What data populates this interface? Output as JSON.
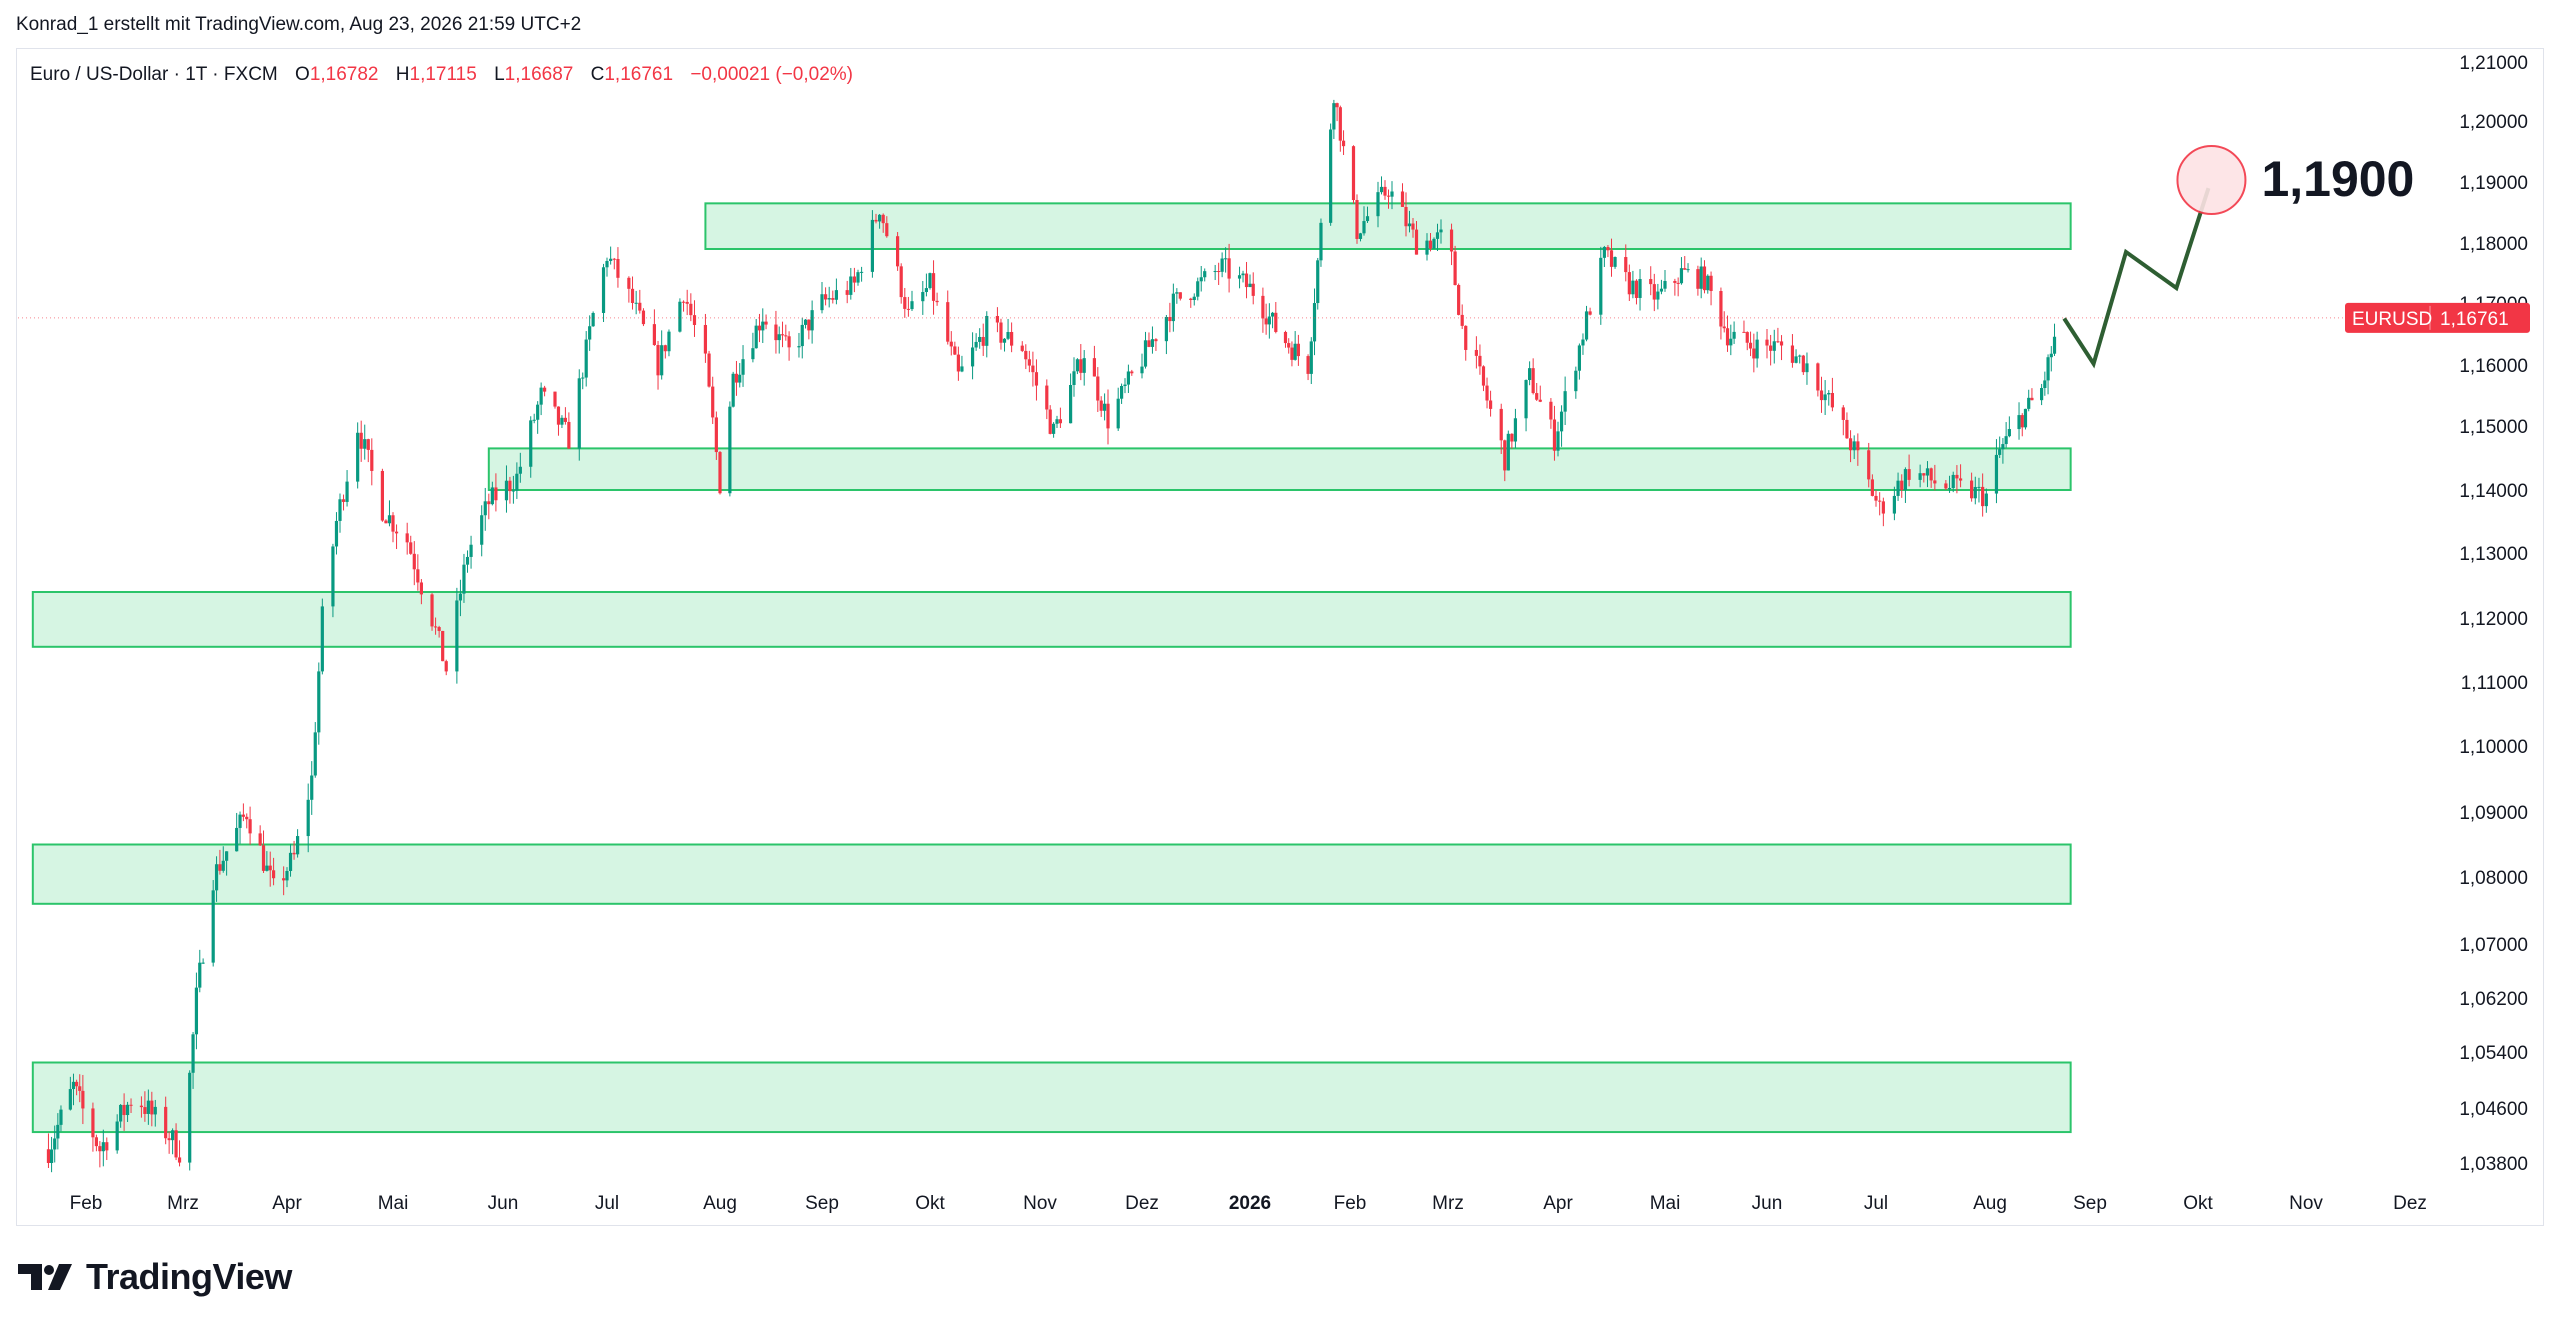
{
  "header": {
    "publisher_line": "Konrad_1 erstellt mit TradingView.com, Aug 23, 2026 21:59 UTC+2"
  },
  "legend": {
    "symbol_name": "Euro / US-Dollar · 1T · FXCM",
    "open_label": "O",
    "open": "1,16782",
    "high_label": "H",
    "high": "1,17115",
    "low_label": "L",
    "low": "1,16687",
    "close_label": "C",
    "close": "1,16761",
    "change": "−0,00021 (−0,02%)"
  },
  "price_tag": {
    "symbol": "EURUSD",
    "price": "1,16761",
    "color": "#f23645"
  },
  "brand": {
    "name": "TradingView",
    "icon": "tradingview-logo-icon"
  },
  "colors": {
    "up": "#089981",
    "down": "#f23645",
    "zone_fill": "#d6f5e3",
    "zone_border": "#2bc46a",
    "projection": "#2e5e32"
  },
  "chart_data": {
    "type": "candlestick",
    "instrument": "EURUSD",
    "timeframe": "1T",
    "ylim": [
      1.034,
      1.213
    ],
    "y_ticks": [
      "1,21000",
      "1,20000",
      "1,19000",
      "1,18000",
      "1,17000",
      "1,16000",
      "1,15000",
      "1,14000",
      "1,13000",
      "1,12000",
      "1,11000",
      "1,10000",
      "1,09000",
      "1,08000",
      "1,07000",
      "1,06200",
      "1,05400",
      "1,04600",
      "1,03800"
    ],
    "x_ticks": [
      {
        "label": "Feb",
        "bold": false
      },
      {
        "label": "Mrz",
        "bold": false
      },
      {
        "label": "Apr",
        "bold": false
      },
      {
        "label": "Mai",
        "bold": false
      },
      {
        "label": "Jun",
        "bold": false
      },
      {
        "label": "Jul",
        "bold": false
      },
      {
        "label": "Aug",
        "bold": false
      },
      {
        "label": "Sep",
        "bold": false
      },
      {
        "label": "Okt",
        "bold": false
      },
      {
        "label": "Nov",
        "bold": false
      },
      {
        "label": "Dez",
        "bold": false
      },
      {
        "label": "2026",
        "bold": true
      },
      {
        "label": "Feb",
        "bold": false
      },
      {
        "label": "Mrz",
        "bold": false
      },
      {
        "label": "Apr",
        "bold": false
      },
      {
        "label": "Mai",
        "bold": false
      },
      {
        "label": "Jun",
        "bold": false
      },
      {
        "label": "Jul",
        "bold": false
      },
      {
        "label": "Aug",
        "bold": false
      },
      {
        "label": "Sep",
        "bold": false
      },
      {
        "label": "Okt",
        "bold": false
      },
      {
        "label": "Nov",
        "bold": false
      },
      {
        "label": "Dez",
        "bold": false
      }
    ],
    "price_path": [
      [
        "2025-01-20",
        1.04
      ],
      [
        "2025-01-28",
        1.049
      ],
      [
        "2025-02-05",
        1.04
      ],
      [
        "2025-02-15",
        1.048
      ],
      [
        "2025-02-25",
        1.042
      ],
      [
        "2025-03-01",
        1.039
      ],
      [
        "2025-03-05",
        1.062
      ],
      [
        "2025-03-10",
        1.08
      ],
      [
        "2025-03-20",
        1.09
      ],
      [
        "2025-03-28",
        1.078
      ],
      [
        "2025-04-03",
        1.083
      ],
      [
        "2025-04-08",
        1.095
      ],
      [
        "2025-04-11",
        1.12
      ],
      [
        "2025-04-15",
        1.135
      ],
      [
        "2025-04-21",
        1.15
      ],
      [
        "2025-04-28",
        1.137
      ],
      [
        "2025-05-05",
        1.132
      ],
      [
        "2025-05-12",
        1.12
      ],
      [
        "2025-05-16",
        1.112
      ],
      [
        "2025-05-22",
        1.13
      ],
      [
        "2025-05-28",
        1.138
      ],
      [
        "2025-06-05",
        1.142
      ],
      [
        "2025-06-12",
        1.155
      ],
      [
        "2025-06-20",
        1.148
      ],
      [
        "2025-06-27",
        1.168
      ],
      [
        "2025-07-01",
        1.178
      ],
      [
        "2025-07-08",
        1.17
      ],
      [
        "2025-07-15",
        1.16
      ],
      [
        "2025-07-22",
        1.172
      ],
      [
        "2025-07-28",
        1.16
      ],
      [
        "2025-08-01",
        1.141
      ],
      [
        "2025-08-05",
        1.158
      ],
      [
        "2025-08-14",
        1.168
      ],
      [
        "2025-08-22",
        1.162
      ],
      [
        "2025-09-01",
        1.17
      ],
      [
        "2025-09-10",
        1.173
      ],
      [
        "2025-09-17",
        1.186
      ],
      [
        "2025-09-25",
        1.168
      ],
      [
        "2025-10-01",
        1.173
      ],
      [
        "2025-10-09",
        1.158
      ],
      [
        "2025-10-17",
        1.166
      ],
      [
        "2025-10-27",
        1.163
      ],
      [
        "2025-11-05",
        1.149
      ],
      [
        "2025-11-14",
        1.162
      ],
      [
        "2025-11-21",
        1.151
      ],
      [
        "2025-12-01",
        1.161
      ],
      [
        "2025-12-10",
        1.17
      ],
      [
        "2025-12-24",
        1.176
      ],
      [
        "2026-01-02",
        1.172
      ],
      [
        "2026-01-10",
        1.165
      ],
      [
        "2026-01-19",
        1.16
      ],
      [
        "2026-01-27",
        1.205
      ],
      [
        "2026-02-03",
        1.182
      ],
      [
        "2026-02-12",
        1.189
      ],
      [
        "2026-02-20",
        1.18
      ],
      [
        "2026-03-01",
        1.181
      ],
      [
        "2026-03-05",
        1.166
      ],
      [
        "2026-03-10",
        1.158
      ],
      [
        "2026-03-17",
        1.145
      ],
      [
        "2026-03-24",
        1.158
      ],
      [
        "2026-03-31",
        1.148
      ],
      [
        "2026-04-07",
        1.163
      ],
      [
        "2026-04-14",
        1.178
      ],
      [
        "2026-04-21",
        1.173
      ],
      [
        "2026-04-29",
        1.171
      ],
      [
        "2026-05-06",
        1.175
      ],
      [
        "2026-05-13",
        1.174
      ],
      [
        "2026-05-20",
        1.165
      ],
      [
        "2026-05-28",
        1.163
      ],
      [
        "2026-06-05",
        1.163
      ],
      [
        "2026-06-12",
        1.16
      ],
      [
        "2026-06-19",
        1.153
      ],
      [
        "2026-06-26",
        1.145
      ],
      [
        "2026-07-02",
        1.137
      ],
      [
        "2026-07-10",
        1.143
      ],
      [
        "2026-07-18",
        1.141
      ],
      [
        "2026-07-25",
        1.14
      ],
      [
        "2026-07-31",
        1.139
      ],
      [
        "2026-08-04",
        1.146
      ],
      [
        "2026-08-10",
        1.151
      ],
      [
        "2026-08-17",
        1.156
      ],
      [
        "2026-08-23",
        1.168
      ]
    ],
    "zones": [
      {
        "from": "2025-07-28",
        "to": "2026-08-26",
        "low": 1.179,
        "high": 1.1865
      },
      {
        "from": "2025-05-28",
        "to": "2026-08-26",
        "low": 1.14,
        "high": 1.1465
      },
      {
        "from": "2025-01-15",
        "to": "2026-08-26",
        "low": 1.1155,
        "high": 1.124
      },
      {
        "from": "2025-01-15",
        "to": "2026-08-26",
        "low": 1.076,
        "high": 1.085
      },
      {
        "from": "2025-01-15",
        "to": "2026-08-26",
        "low": 1.0425,
        "high": 1.0525
      }
    ],
    "projection": [
      [
        "2026-08-24",
        1.1675
      ],
      [
        "2026-09-02",
        1.1602
      ],
      [
        "2026-09-11",
        1.1785
      ],
      [
        "2026-09-25",
        1.1725
      ],
      [
        "2026-10-04",
        1.189
      ]
    ],
    "target": {
      "label": "1,1900",
      "date": "2026-10-04",
      "price": 1.19
    },
    "last_price": 1.16761
  }
}
